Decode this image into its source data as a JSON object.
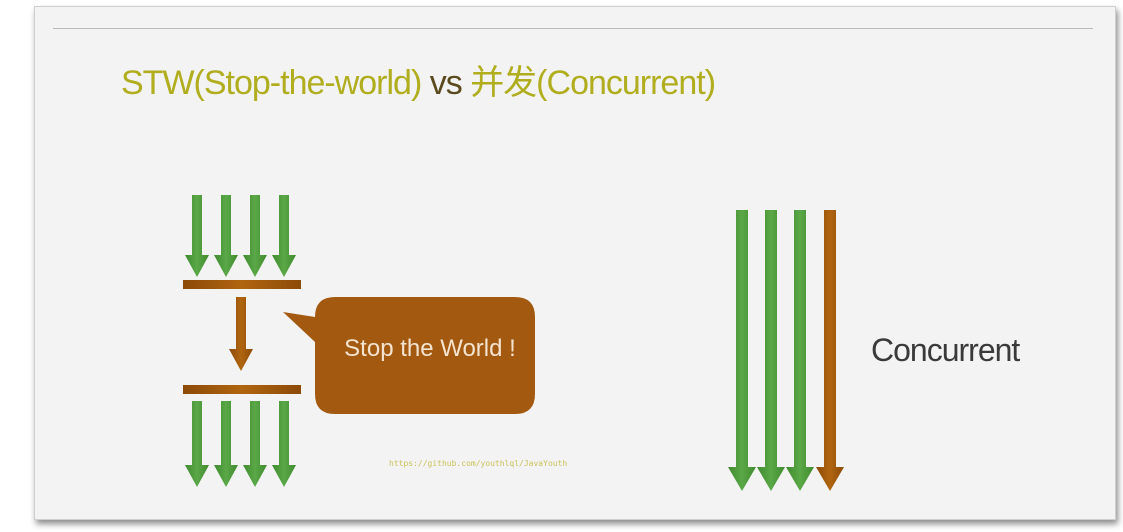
{
  "title": {
    "stw": "STW(Stop-the-world)",
    "vs": " vs ",
    "concurrent": "并发(Concurrent)"
  },
  "stw_diagram": {
    "bubble_text": "Stop the World !",
    "thread_count": 4
  },
  "concurrent_diagram": {
    "label": "Concurrent",
    "thread_count": 4
  },
  "watermark": "https://github.com/youthlql/JavaYouth",
  "colors": {
    "green_arrow": "#4e9a3a",
    "brown": "#a45a0c",
    "title": "#b0ad1e"
  }
}
